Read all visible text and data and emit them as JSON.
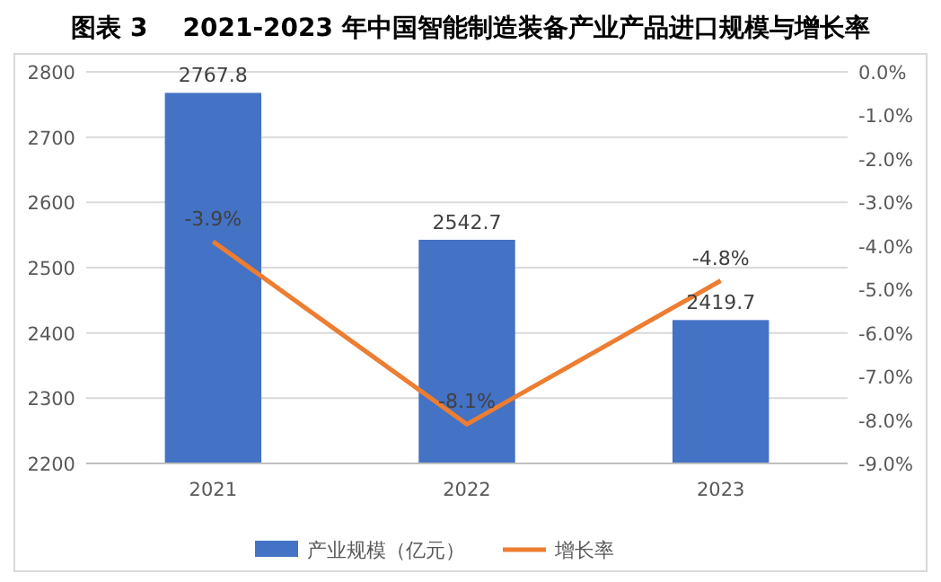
{
  "chart_data": {
    "type": "bar",
    "title": "图表 3    2021-2023 年中国智能制造装备产业产品进口规模与增长率",
    "categories": [
      "2021",
      "2022",
      "2023"
    ],
    "series": [
      {
        "name": "产业规模（亿元）",
        "color": "#4472c4",
        "values": [
          2767.8,
          2542.7,
          2419.7
        ],
        "value_labels": [
          "2767.8",
          "2542.7",
          "2419.7"
        ]
      },
      {
        "name": "增长率",
        "type": "line",
        "axis": "y2",
        "color": "#ed7d31",
        "values": [
          -3.9,
          -8.1,
          -4.8
        ],
        "value_labels": [
          "-3.9%",
          "-8.1%",
          "-4.8%"
        ]
      }
    ],
    "ylim": [
      2200,
      2800
    ],
    "yticks": [
      2200,
      2300,
      2400,
      2500,
      2600,
      2700,
      2800
    ],
    "y2lim": [
      -9,
      0
    ],
    "y2ticks": [
      {
        "value": 0,
        "label": "0.0%"
      },
      {
        "value": -1,
        "label": "-1.0%"
      },
      {
        "value": -2,
        "label": "-2.0%"
      },
      {
        "value": -3,
        "label": "-3.0%"
      },
      {
        "value": -4,
        "label": "-4.0%"
      },
      {
        "value": -5,
        "label": "-5.0%"
      },
      {
        "value": -6,
        "label": "-6.0%"
      },
      {
        "value": -7,
        "label": "-7.0%"
      },
      {
        "value": -8,
        "label": "-8.0%"
      },
      {
        "value": -9,
        "label": "-9.0%"
      }
    ],
    "grid": "y",
    "legend": "bottom",
    "marker": "none",
    "line_style": "solid"
  }
}
